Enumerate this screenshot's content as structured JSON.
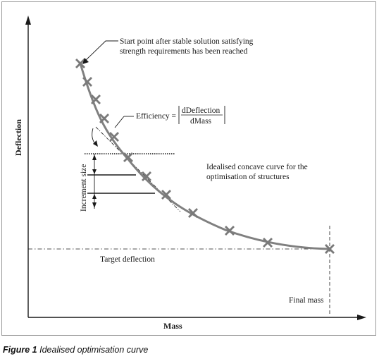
{
  "figure": {
    "caption_number": "Figure 1",
    "caption_text": "Idealised optimisation curve"
  },
  "axes": {
    "x_label": "Mass",
    "y_label": "Deflection"
  },
  "annotations": {
    "start_point_line1": "Start point after stable solution satisfying",
    "start_point_line2": "strength requirements has been reached",
    "efficiency_label": "Efficiency =",
    "efficiency_numerator": "dDeflection",
    "efficiency_denominator": "dMass",
    "curve_desc_line1": "Idealised concave curve for the",
    "curve_desc_line2": "optimisation of structures",
    "increment_size": "Increment size",
    "target_deflection": "Target deflection",
    "final_mass": "Final mass"
  },
  "colors": {
    "curve": "#808080",
    "markers": "#7a7a7a",
    "lines": "#1a1a1a"
  }
}
